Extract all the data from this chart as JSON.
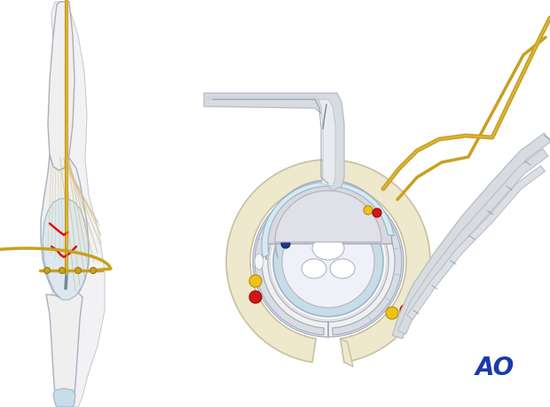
{
  "bg_color": "#ffffff",
  "ao_color": "#1a3aaa",
  "ao_text": "AO",
  "bone_color": "#efefef",
  "bone_color2": "#e8e8ee",
  "bone_outline": "#a8b0c0",
  "cartilage_color": "#c8dce8",
  "tendon_fill": "#eee8cc",
  "tendon_outline": "#c8c0a0",
  "wire_color": "#c8a020",
  "wire_dark": "#9a7810",
  "red_color": "#cc1818",
  "fracture_red": "#dd1111",
  "yellow_dot": "#f0c018",
  "blue_dot": "#1a3a88",
  "steel_light": "#d8dce0",
  "steel_mid": "#b8c0c8",
  "steel_dark": "#788898",
  "white_color": "#f8f8f8",
  "gray_light": "#e0e0e8",
  "tan_color": "#e8dcc0",
  "sheath_color": "#d8dce4"
}
